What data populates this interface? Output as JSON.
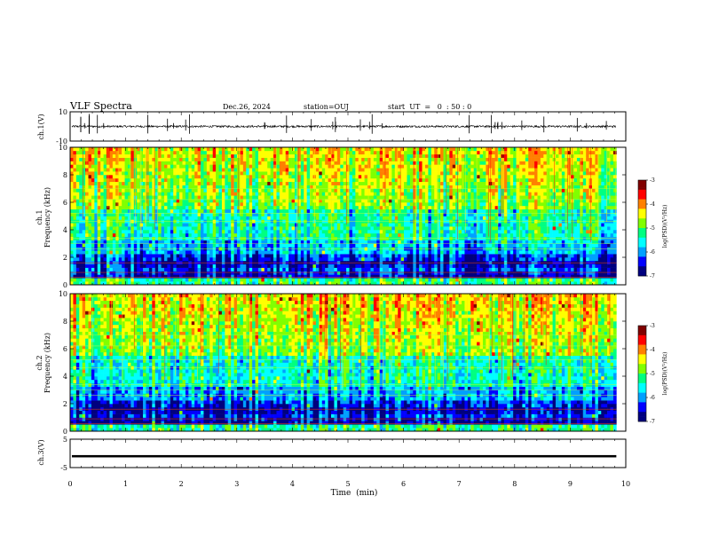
{
  "header": {
    "title": "VLF Spectra",
    "date": "Dec.26, 2024",
    "station": "station=OUJ",
    "start_ut": "start  UT  =   0  : 50 : 0"
  },
  "chart_data": [
    {
      "type": "line",
      "name": "ch1-waveform",
      "ylabel": "ch.1(V)",
      "ylim": [
        -10,
        10
      ],
      "y_ticks": [
        "10",
        "-10"
      ],
      "x_range_min": [
        0,
        9.83
      ]
    },
    {
      "type": "heatmap",
      "name": "ch1-spectrogram",
      "ylabel": "ch.1\nFrequency  (kHz)",
      "ylabel_line1": "ch.1",
      "ylabel_line2": "Frequency  (kHz)",
      "ylim": [
        0,
        10
      ],
      "y_ticks": [
        "0",
        "2",
        "4",
        "6",
        "8",
        "10"
      ],
      "x_range_min": [
        0,
        9.83
      ],
      "colorbar": {
        "label": "log(PSD)(V²/Hz)",
        "range": [
          -7,
          -3
        ],
        "ticks": [
          "-3",
          "-4",
          "-5",
          "-6",
          "-7"
        ]
      }
    },
    {
      "type": "heatmap",
      "name": "ch2-spectrogram",
      "ylabel_line1": "ch.2",
      "ylabel_line2": "Frequency  (kHz)",
      "ylim": [
        0,
        10
      ],
      "y_ticks": [
        "0",
        "2",
        "4",
        "6",
        "8",
        "10"
      ],
      "x_range_min": [
        0,
        9.83
      ],
      "colorbar": {
        "label": "log(PSD)(V²/Hz)",
        "range": [
          -7,
          -3
        ],
        "ticks": [
          "-3",
          "-4",
          "-5",
          "-6",
          "-7"
        ]
      }
    },
    {
      "type": "line",
      "name": "ch3-waveform",
      "ylabel": "ch.3(V)",
      "ylim": [
        -5,
        5
      ],
      "y_ticks": [
        "5",
        "-5"
      ],
      "x_range_min": [
        0,
        9.83
      ]
    }
  ],
  "x_axis": {
    "label": "Time  (min)",
    "range": [
      0,
      10
    ],
    "ticks": [
      "0",
      "1",
      "2",
      "3",
      "4",
      "5",
      "6",
      "7",
      "8",
      "9",
      "10"
    ]
  },
  "colors": {
    "colormap": [
      "#00007f",
      "#0000ff",
      "#00a0ff",
      "#00ffff",
      "#00ff80",
      "#80ff00",
      "#ffff00",
      "#ff8000",
      "#ff0000",
      "#800000"
    ]
  }
}
